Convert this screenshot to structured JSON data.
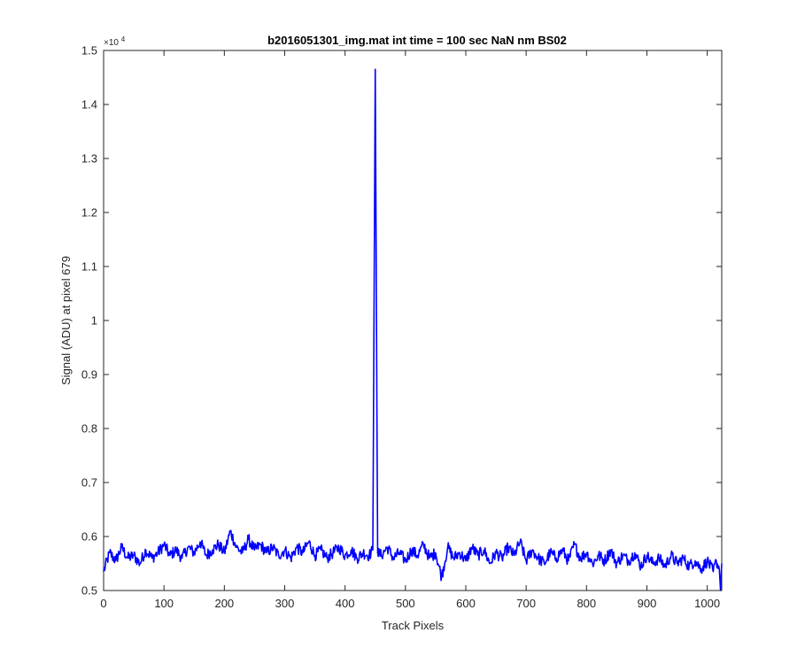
{
  "chart_data": {
    "type": "line",
    "title": "b2016051301_img.mat int time = 100 sec  NaN nm BS02",
    "xlabel": "Track Pixels",
    "ylabel": "Signal (ADU) at pixel 679",
    "y_exponent_label": "×10",
    "y_exponent_power": "4",
    "xlim": [
      0,
      1024
    ],
    "ylim": [
      5000,
      15000
    ],
    "xticks": [
      0,
      100,
      200,
      300,
      400,
      500,
      600,
      700,
      800,
      900,
      1000
    ],
    "xtick_labels": [
      "0",
      "100",
      "200",
      "300",
      "400",
      "500",
      "600",
      "700",
      "800",
      "900",
      "1000"
    ],
    "yticks": [
      5000,
      6000,
      7000,
      8000,
      9000,
      10000,
      11000,
      12000,
      13000,
      14000,
      15000
    ],
    "ytick_labels": [
      "0.5",
      "0.6",
      "0.7",
      "0.8",
      "0.9",
      "1",
      "1.1",
      "1.2",
      "1.3",
      "1.4",
      "1.5"
    ],
    "grid": false,
    "series": [
      {
        "color": "#0000ff",
        "points": [
          [
            0,
            5350
          ],
          [
            10,
            5700
          ],
          [
            20,
            5550
          ],
          [
            30,
            5800
          ],
          [
            40,
            5600
          ],
          [
            50,
            5650
          ],
          [
            60,
            5500
          ],
          [
            70,
            5750
          ],
          [
            80,
            5600
          ],
          [
            90,
            5700
          ],
          [
            100,
            5850
          ],
          [
            110,
            5650
          ],
          [
            120,
            5750
          ],
          [
            130,
            5600
          ],
          [
            140,
            5800
          ],
          [
            150,
            5700
          ],
          [
            160,
            5900
          ],
          [
            170,
            5650
          ],
          [
            180,
            5750
          ],
          [
            190,
            5850
          ],
          [
            200,
            5700
          ],
          [
            210,
            6100
          ],
          [
            220,
            5800
          ],
          [
            230,
            5700
          ],
          [
            240,
            5950
          ],
          [
            250,
            5750
          ],
          [
            260,
            5850
          ],
          [
            270,
            5700
          ],
          [
            280,
            5800
          ],
          [
            290,
            5650
          ],
          [
            300,
            5750
          ],
          [
            310,
            5600
          ],
          [
            320,
            5800
          ],
          [
            330,
            5700
          ],
          [
            340,
            5900
          ],
          [
            350,
            5650
          ],
          [
            360,
            5750
          ],
          [
            370,
            5600
          ],
          [
            380,
            5700
          ],
          [
            390,
            5800
          ],
          [
            400,
            5650
          ],
          [
            410,
            5750
          ],
          [
            420,
            5600
          ],
          [
            430,
            5700
          ],
          [
            440,
            5650
          ],
          [
            446,
            5750
          ],
          [
            450,
            14650
          ],
          [
            454,
            5700
          ],
          [
            460,
            5650
          ],
          [
            470,
            5800
          ],
          [
            480,
            5600
          ],
          [
            490,
            5700
          ],
          [
            500,
            5550
          ],
          [
            510,
            5750
          ],
          [
            520,
            5650
          ],
          [
            530,
            5850
          ],
          [
            540,
            5600
          ],
          [
            550,
            5700
          ],
          [
            560,
            5250
          ],
          [
            570,
            5800
          ],
          [
            580,
            5600
          ],
          [
            590,
            5700
          ],
          [
            600,
            5550
          ],
          [
            610,
            5800
          ],
          [
            620,
            5650
          ],
          [
            630,
            5750
          ],
          [
            640,
            5500
          ],
          [
            650,
            5700
          ],
          [
            660,
            5600
          ],
          [
            670,
            5800
          ],
          [
            680,
            5650
          ],
          [
            690,
            5900
          ],
          [
            700,
            5550
          ],
          [
            710,
            5750
          ],
          [
            720,
            5600
          ],
          [
            730,
            5500
          ],
          [
            740,
            5700
          ],
          [
            750,
            5600
          ],
          [
            760,
            5750
          ],
          [
            770,
            5550
          ],
          [
            780,
            5850
          ],
          [
            790,
            5600
          ],
          [
            800,
            5700
          ],
          [
            810,
            5500
          ],
          [
            820,
            5650
          ],
          [
            830,
            5550
          ],
          [
            840,
            5750
          ],
          [
            850,
            5500
          ],
          [
            860,
            5650
          ],
          [
            870,
            5550
          ],
          [
            880,
            5700
          ],
          [
            890,
            5450
          ],
          [
            900,
            5650
          ],
          [
            910,
            5500
          ],
          [
            920,
            5600
          ],
          [
            930,
            5450
          ],
          [
            940,
            5650
          ],
          [
            950,
            5500
          ],
          [
            960,
            5600
          ],
          [
            970,
            5450
          ],
          [
            980,
            5550
          ],
          [
            990,
            5400
          ],
          [
            1000,
            5550
          ],
          [
            1010,
            5350
          ],
          [
            1015,
            5550
          ],
          [
            1020,
            5400
          ],
          [
            1022,
            5000
          ],
          [
            1024,
            5500
          ]
        ]
      }
    ]
  }
}
